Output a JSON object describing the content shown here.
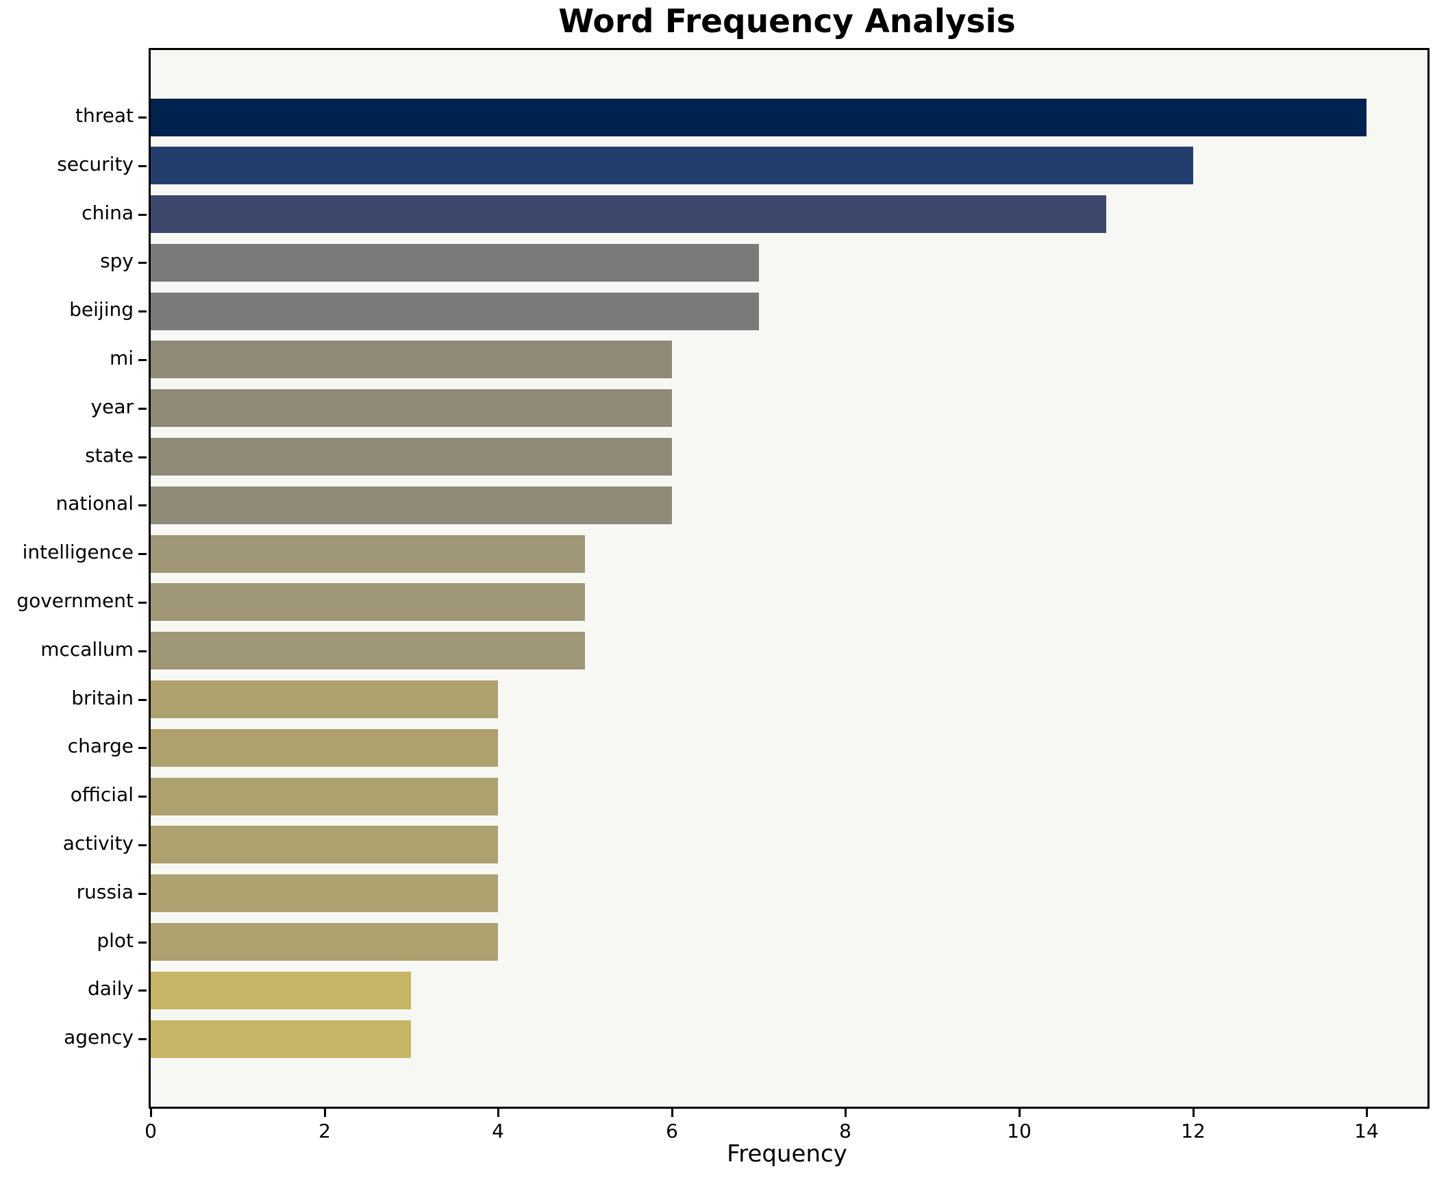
{
  "chart_data": {
    "type": "bar",
    "orientation": "horizontal",
    "title": "Word Frequency Analysis",
    "xlabel": "Frequency",
    "ylabel": "",
    "categories": [
      "threat",
      "security",
      "china",
      "spy",
      "beijing",
      "mi",
      "year",
      "state",
      "national",
      "intelligence",
      "government",
      "mccallum",
      "britain",
      "charge",
      "official",
      "activity",
      "russia",
      "plot",
      "daily",
      "agency"
    ],
    "values": [
      14,
      12,
      11,
      7,
      7,
      6,
      6,
      6,
      6,
      5,
      5,
      5,
      4,
      4,
      4,
      4,
      4,
      4,
      3,
      3
    ],
    "bar_colors": [
      "#00224e",
      "#233e6c",
      "#3b486b",
      "#7a7a78",
      "#7a7a78",
      "#8f8a78",
      "#8f8a78",
      "#8f8a78",
      "#8f8a78",
      "#9f9676",
      "#9f9676",
      "#9f9676",
      "#ada26f",
      "#ada26f",
      "#ada26f",
      "#ada26f",
      "#ada26f",
      "#ada26f",
      "#c5b565",
      "#c5b565"
    ],
    "xticks": [
      0,
      2,
      4,
      6,
      8,
      10,
      12,
      14
    ],
    "xlim": [
      0,
      14.7
    ],
    "grid": false,
    "legend": null,
    "plot_background": "#f7f7f4",
    "figure_background": "#ffffff",
    "spine_color": "#000000"
  }
}
